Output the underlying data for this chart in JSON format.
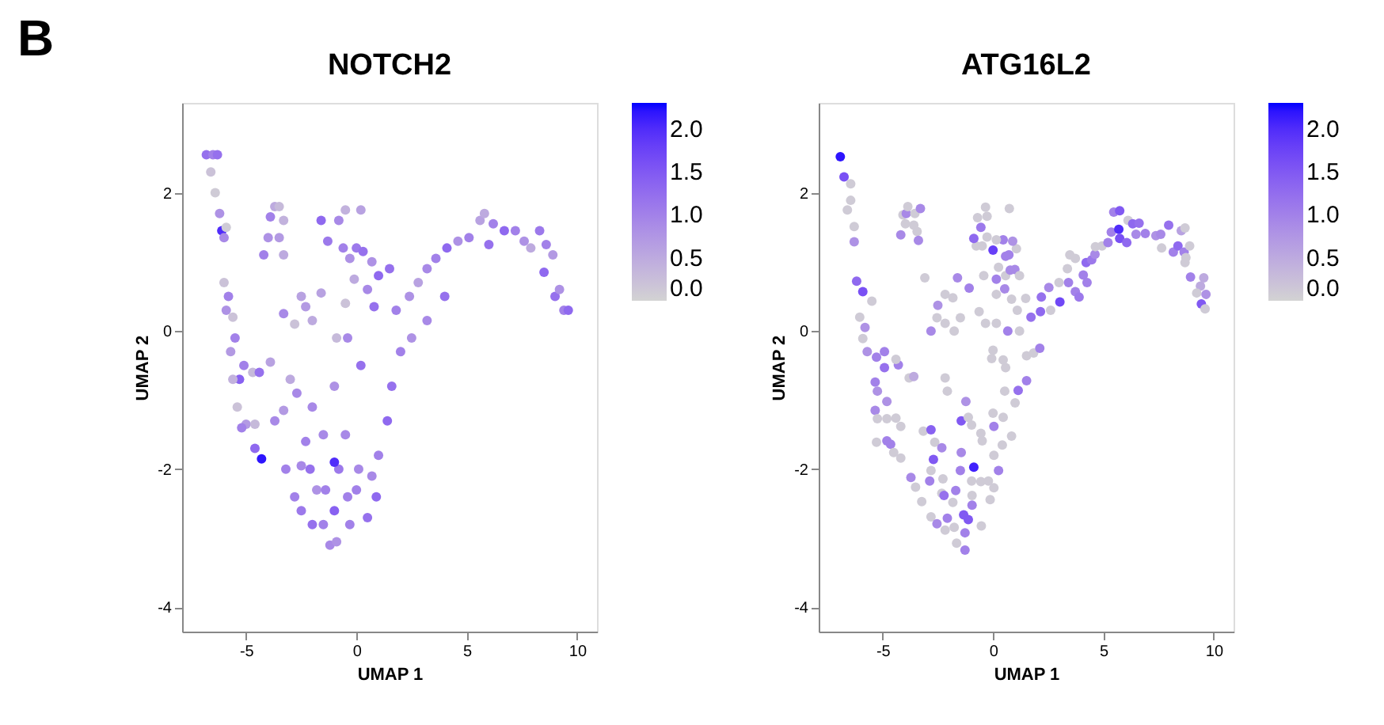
{
  "chart_data": [
    {
      "type": "scatter",
      "title": "NOTCH2",
      "xlabel": "UMAP 1",
      "ylabel": "UMAP 2",
      "annotations": [
        "B"
      ],
      "xlim": [
        -7.9,
        10.9
      ],
      "ylim": [
        -4.35,
        3.3
      ],
      "xticks": [
        -5,
        0,
        5,
        10
      ],
      "yticks": [
        -4,
        -2,
        0,
        2
      ],
      "clim": [
        0,
        2.3
      ],
      "cticks": [
        {
          "value": 0,
          "label": "0.0"
        },
        {
          "value": 0.5,
          "label": "0.5"
        },
        {
          "value": 1,
          "label": "1.0"
        },
        {
          "value": 1.5,
          "label": "1.5"
        },
        {
          "value": 2,
          "label": "2.0"
        }
      ],
      "grid": false,
      "x": [
        -6.8,
        -6.5,
        -6.3,
        -6.6,
        -6.4,
        -6.2,
        -6.1,
        -6.0,
        -5.9,
        -6.0,
        -5.8,
        -5.9,
        -5.6,
        -5.5,
        -5.7,
        -3.7,
        -3.5,
        -3.9,
        -3.3,
        -4.0,
        -3.5,
        -4.2,
        -3.3,
        -0.5,
        0.2,
        -1.6,
        -0.8,
        -1.3,
        -0.6,
        0.0,
        0.3,
        -0.3,
        0.7,
        -0.1,
        0.5,
        1.0,
        0.8,
        -0.5,
        -1.6,
        -2.5,
        -2.3,
        -3.3,
        -2.8,
        -2.0,
        -0.9,
        1.5,
        1.8,
        2.4,
        2.8,
        3.2,
        3.6,
        4.1,
        4.6,
        5.1,
        5.6,
        5.8,
        6.2,
        6.7,
        7.2,
        7.6,
        8.3,
        8.6,
        8.9,
        8.5,
        9.0,
        9.4,
        9.6,
        9.2,
        6.0,
        7.9,
        4.0,
        3.2,
        2.5,
        2.0,
        1.6,
        1.4,
        1.0,
        0.9,
        0.5,
        0.7,
        0.0,
        -0.5,
        -0.8,
        -1.0,
        -1.2,
        -0.9,
        -1.5,
        -2.0,
        -2.5,
        -2.8,
        -3.2,
        -2.5,
        -1.5,
        -2.3,
        -2.0,
        -2.7,
        -1.0,
        -0.4,
        0.2,
        -4.3,
        -4.6,
        -5.0,
        -5.2,
        -5.4,
        -4.6,
        -3.7,
        -3.3,
        -5.3,
        -5.1,
        -4.7,
        -5.6,
        -4.4,
        -3.9,
        -3.0,
        -1.8,
        -1.4,
        0.1,
        -0.4,
        -1.0,
        -2.1,
        -0.3
      ],
      "values": [
        2.55,
        2.55,
        2.55,
        2.3,
        2.0,
        1.7,
        1.45,
        1.35,
        1.5,
        0.7,
        0.5,
        0.3,
        0.2,
        -0.1,
        -0.3,
        1.8,
        1.8,
        1.65,
        1.6,
        1.35,
        1.35,
        1.1,
        1.1,
        1.75,
        1.75,
        1.6,
        1.6,
        1.3,
        1.2,
        1.2,
        1.15,
        1.05,
        1.0,
        0.75,
        0.6,
        0.8,
        0.35,
        0.4,
        0.55,
        0.5,
        0.35,
        0.25,
        0.1,
        0.15,
        -0.1,
        0.9,
        0.3,
        0.5,
        0.7,
        0.9,
        1.05,
        1.2,
        1.3,
        1.35,
        1.6,
        1.7,
        1.55,
        1.45,
        1.45,
        1.3,
        1.45,
        1.25,
        1.1,
        0.85,
        0.5,
        0.3,
        0.3,
        0.6,
        1.25,
        1.2,
        0.5,
        0.15,
        -0.1,
        -0.3,
        -0.8,
        -1.3,
        -1.8,
        -2.4,
        -2.7,
        -2.1,
        -2.3,
        -1.5,
        -2.0,
        -2.6,
        -3.1,
        -3.05,
        -2.8,
        -2.8,
        -2.6,
        -2.4,
        -2.0,
        -1.95,
        -1.5,
        -1.6,
        -1.1,
        -0.9,
        -0.8,
        -0.1,
        -0.5,
        -1.85,
        -1.7,
        -1.35,
        -1.4,
        -1.1,
        -1.35,
        -1.3,
        -1.15,
        -0.7,
        -0.5,
        -0.6,
        -0.7,
        -0.6,
        -0.45,
        -0.7,
        -2.3,
        -2.3,
        -2.0,
        -2.4,
        -1.9,
        -2.0,
        -2.8
      ],
      "cvalues": [
        1.2,
        1.0,
        1.2,
        0.2,
        0.1,
        0.8,
        2.0,
        0.9,
        0.1,
        0.2,
        1.0,
        0.8,
        0.2,
        1.0,
        0.7,
        0.5,
        0.3,
        1.0,
        0.4,
        0.8,
        0.7,
        1.0,
        0.5,
        0.4,
        0.6,
        1.3,
        0.9,
        1.1,
        1.0,
        1.1,
        1.2,
        0.8,
        0.8,
        0.5,
        0.9,
        1.3,
        1.2,
        0.2,
        0.6,
        0.6,
        0.7,
        0.9,
        0.2,
        0.5,
        0.3,
        1.2,
        1.0,
        0.8,
        0.6,
        0.9,
        1.0,
        1.3,
        0.8,
        1.0,
        0.6,
        0.5,
        1.0,
        1.3,
        1.0,
        0.8,
        1.1,
        1.0,
        0.7,
        1.3,
        1.2,
        1.0,
        1.3,
        0.8,
        1.2,
        0.5,
        1.2,
        0.9,
        0.8,
        1.0,
        1.2,
        1.3,
        1.0,
        1.3,
        1.2,
        0.9,
        1.0,
        0.9,
        1.1,
        1.4,
        0.9,
        0.8,
        1.0,
        1.2,
        1.1,
        1.0,
        1.0,
        0.9,
        0.9,
        1.0,
        0.9,
        0.9,
        0.8,
        0.9,
        1.2,
        2.2,
        1.3,
        0.7,
        1.0,
        0.2,
        0.3,
        0.9,
        0.7,
        1.4,
        1.0,
        0.3,
        0.4,
        1.2,
        0.6,
        0.5,
        0.8,
        1.0,
        0.9,
        1.0,
        2.0,
        1.2,
        1.0
      ]
    },
    {
      "type": "scatter",
      "title": "ATG16L2",
      "xlabel": "UMAP 1",
      "ylabel": "UMAP 2",
      "xlim": [
        -7.9,
        10.9
      ],
      "ylim": [
        -4.35,
        3.3
      ],
      "xticks": [
        -5,
        0,
        5,
        10
      ],
      "yticks": [
        -4,
        -2,
        0,
        2
      ],
      "clim": [
        0,
        2.3
      ],
      "cticks": [
        {
          "value": 0,
          "label": "0.0"
        },
        {
          "value": 0.5,
          "label": "0.5"
        },
        {
          "value": 1,
          "label": "1.0"
        },
        {
          "value": 1.5,
          "label": "1.5"
        },
        {
          "value": 2,
          "label": "2.0"
        }
      ],
      "grid": false,
      "x": [
        -6.92,
        -6.75,
        -6.45,
        -6.45,
        -6.6,
        -6.29,
        -6.29,
        -6.18,
        -5.9,
        -5.49,
        -6.04,
        -5.8,
        -5.9,
        -5.7,
        -5.28,
        -4.92,
        -4.92,
        -5.34,
        -5.24,
        -4.29,
        -4.4,
        -3.8,
        -3.59,
        -4.81,
        -5.34,
        -5.24,
        -4.81,
        -4.4,
        -4.18,
        -5.28,
        -4.81,
        -4.64,
        -4.5,
        -4.18,
        -3.16,
        -2.81,
        -2.64,
        -2.32,
        -2.7,
        -2.81,
        -3.72,
        -3.51,
        -2.87,
        -2.27,
        -2.32,
        -3.23,
        -2.22,
        -1.69,
        -1.82,
        -2.81,
        -2.54,
        -2.07,
        -2.17,
        -1.76,
        -1.33,
        -1.12,
        -1.27,
        -1.65,
        -1.27,
        -0.53,
        -0.95,
        -0.95,
        -1.48,
        -1.44,
        -0.87,
        -0.97,
        -0.55,
        -0.21,
        0.04,
        -0.13,
        0.25,
        0.04,
        0.42,
        0.84,
        0.46,
        0.0,
        0.04,
        -0.49,
        -0.55,
        -0.97,
        -1.44,
        -1.23,
        -1.12,
        -2.07,
        -2.17,
        1.0,
        0.53,
        1.14,
        1.52,
        0.57,
        0.46,
        0.0,
        -0.06,
        1.52,
        1.84,
        2.12,
        0.67,
        1.2,
        0.15,
        -0.34,
        -0.63,
        -1.48,
        -1.76,
        -2.17,
        -2.81,
        -2.54,
        -2.5,
        -2.17,
        -1.82,
        -1.61,
        -1.08,
        -3.09,
        -0.42,
        0.15,
        0.53,
        0.84,
        1.1,
        1.48,
        0.15,
        0.57,
        0.78,
        0.99,
        1.2,
        0.25,
        0.72,
        0.57,
        1.06,
        0.89,
        0.46,
        0.15,
        0.0,
        -0.27,
        -0.49,
        -0.76,
        -0.87,
        -0.55,
        -0.7,
        -0.27,
        -0.34,
        0.74,
        -4.18,
        -3.97,
        -4.08,
        -3.93,
        -3.86,
        -3.54,
        -3.29,
        -3.59,
        -3.44,
        -3.38,
        1.72,
        2.15,
        2.19,
        2.53,
        2.61,
        3.03,
        2.99,
        3.42,
        3.37,
        3.48,
        3.73,
        3.73,
        3.9,
        4.09,
        4.26,
        4.22,
        4.47,
        4.62,
        4.64,
        4.94,
        5.21,
        5.36,
        5.47,
        5.74,
        5.7,
        5.74,
        6.06,
        6.12,
        6.33,
        6.62,
        6.48,
        6.9,
        7.38,
        7.6,
        7.64,
        7.96,
        8.17,
        8.38,
        8.53,
        8.7,
        8.66,
        8.91,
        8.74,
        8.7,
        8.95,
        9.55,
        9.4,
        9.23,
        9.65,
        9.44,
        9.61
      ],
      "values": [
        2.52,
        2.23,
        2.13,
        1.89,
        1.75,
        1.51,
        1.29,
        0.72,
        0.57,
        0.43,
        0.2,
        0.05,
        -0.11,
        -0.3,
        -0.38,
        -0.3,
        -0.53,
        -0.74,
        -0.87,
        -0.49,
        -0.41,
        -0.68,
        -0.66,
        -1.02,
        -1.15,
        -1.27,
        -1.27,
        -1.26,
        -1.38,
        -1.61,
        -1.59,
        -1.64,
        -1.76,
        -1.84,
        -1.45,
        -1.43,
        -1.61,
        -1.69,
        -1.86,
        -2.02,
        -2.12,
        -2.26,
        -2.17,
        -2.14,
        -2.35,
        -2.47,
        -2.38,
        -2.31,
        -2.48,
        -2.69,
        -2.79,
        -2.71,
        -2.88,
        -2.84,
        -2.66,
        -2.73,
        -2.92,
        -3.07,
        -3.17,
        -2.82,
        -2.52,
        -2.38,
        -2.02,
        -1.76,
        -1.97,
        -2.17,
        -2.18,
        -2.17,
        -2.27,
        -2.44,
        -2.02,
        -1.8,
        -1.65,
        -1.52,
        -1.25,
        -1.19,
        -1.38,
        -1.59,
        -1.48,
        -1.36,
        -1.3,
        -1.02,
        -1.25,
        -0.87,
        -0.68,
        -1.04,
        -0.87,
        -0.86,
        -0.72,
        -0.53,
        -0.42,
        -0.28,
        -0.4,
        -0.36,
        -0.32,
        -0.25,
        0.0,
        0.0,
        0.11,
        0.11,
        0.28,
        0.19,
        0.0,
        0.11,
        0.0,
        0.19,
        0.37,
        0.53,
        0.48,
        0.77,
        0.62,
        0.77,
        0.8,
        0.53,
        0.61,
        0.46,
        0.3,
        0.47,
        0.75,
        0.8,
        0.88,
        0.89,
        0.8,
        0.92,
        1.1,
        1.08,
        1.19,
        1.3,
        1.32,
        1.32,
        1.17,
        1.36,
        1.23,
        1.23,
        1.34,
        1.5,
        1.64,
        1.66,
        1.79,
        1.77,
        1.39,
        1.55,
        1.68,
        1.7,
        1.8,
        1.7,
        1.77,
        1.53,
        1.44,
        1.31,
        0.2,
        0.28,
        0.49,
        0.63,
        0.3,
        0.42,
        0.7,
        0.7,
        0.9,
        1.1,
        1.05,
        0.57,
        0.49,
        0.81,
        0.7,
        0.99,
        1.03,
        1.11,
        1.22,
        1.23,
        1.28,
        1.43,
        1.72,
        1.74,
        1.47,
        1.34,
        1.28,
        1.6,
        1.55,
        1.56,
        1.4,
        1.41,
        1.38,
        1.4,
        1.2,
        1.53,
        1.14,
        1.23,
        1.45,
        1.49,
        1.14,
        1.23,
        1.06,
        0.99,
        0.78,
        0.77,
        0.65,
        0.55,
        0.53,
        0.39,
        0.32
      ],
      "cvalues": [
        2.2,
        1.6,
        0.1,
        0.1,
        0.1,
        0.1,
        0.8,
        1.3,
        1.6,
        0.1,
        0.1,
        0.8,
        0.1,
        0.8,
        1.0,
        1.0,
        1.2,
        1.0,
        0.8,
        1.0,
        0.1,
        0.1,
        0.5,
        0.8,
        0.9,
        0.1,
        0.1,
        0.1,
        0.1,
        0.1,
        1.0,
        1.0,
        0.1,
        0.1,
        0.1,
        1.4,
        0.1,
        0.9,
        1.5,
        0.1,
        0.9,
        0.1,
        1.0,
        0.1,
        0.1,
        0.1,
        1.2,
        1.0,
        0.1,
        0.1,
        0.9,
        1.0,
        0.1,
        0.1,
        1.5,
        1.5,
        1.0,
        0.1,
        1.0,
        0.1,
        1.0,
        0.1,
        1.0,
        0.9,
        2.1,
        0.1,
        0.1,
        0.1,
        0.1,
        0.1,
        1.0,
        0.1,
        0.1,
        0.1,
        0.1,
        0.1,
        1.0,
        0.1,
        0.1,
        0.1,
        1.5,
        0.8,
        0.1,
        0.1,
        0.1,
        0.1,
        0.1,
        1.2,
        1.0,
        0.1,
        0.1,
        0.1,
        0.1,
        0.1,
        0.1,
        1.0,
        1.0,
        0.1,
        0.1,
        0.1,
        0.1,
        0.1,
        0.1,
        0.1,
        0.9,
        0.1,
        0.8,
        0.1,
        0.1,
        0.9,
        1.0,
        0.1,
        0.1,
        0.1,
        0.9,
        0.1,
        0.1,
        0.1,
        1.0,
        0.1,
        0.9,
        0.9,
        0.1,
        0.1,
        1.0,
        1.0,
        0.1,
        0.8,
        1.0,
        0.1,
        1.8,
        0.1,
        0.1,
        0.1,
        1.3,
        1.1,
        0.1,
        0.1,
        0.1,
        0.1,
        0.9,
        0.1,
        0.1,
        0.9,
        0.1,
        0.1,
        0.9,
        0.1,
        0.1,
        0.9,
        1.2,
        1.3,
        1.2,
        0.9,
        0.1,
        1.7,
        0.1,
        1.0,
        0.1,
        0.1,
        0.1,
        1.0,
        1.1,
        1.0,
        1.0,
        1.3,
        1.1,
        0.9,
        0.1,
        0.1,
        1.0,
        1.0,
        1.0,
        1.5,
        2.0,
        1.6,
        1.3,
        0.1,
        1.3,
        1.2,
        0.9,
        1.0,
        0.8,
        0.9,
        0.1,
        1.2,
        1.0,
        1.3,
        0.6,
        0.1,
        1.0,
        0.1,
        0.1,
        0.1,
        1.0,
        0.5,
        0.5,
        0.1,
        0.8,
        1.5,
        0.1
      ]
    }
  ]
}
